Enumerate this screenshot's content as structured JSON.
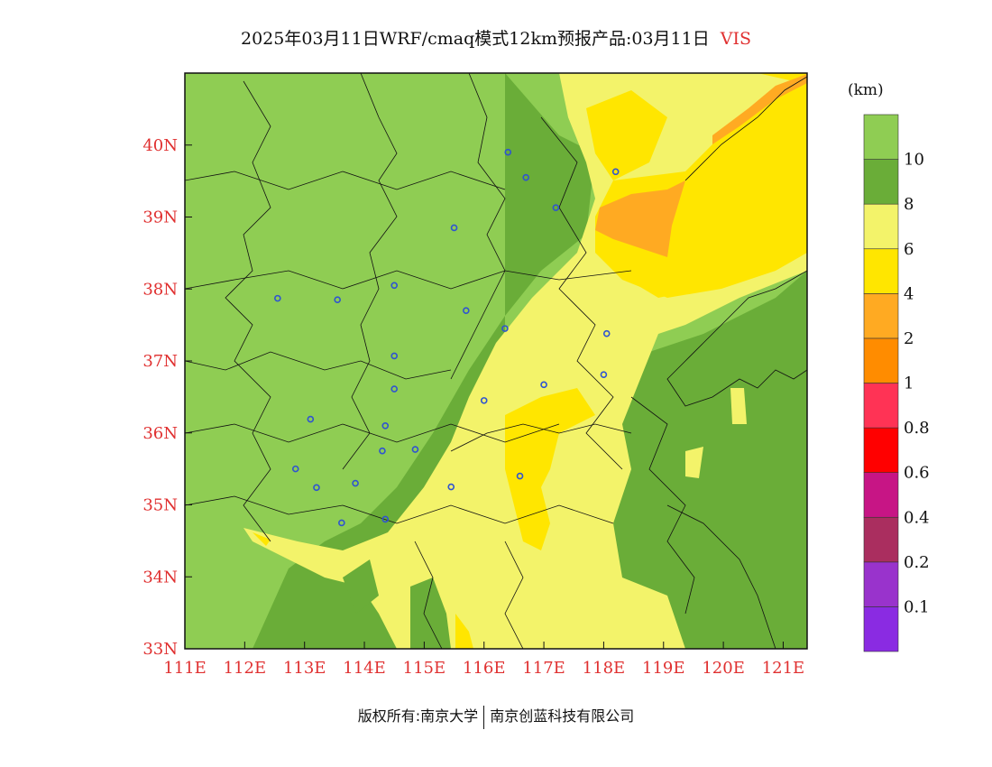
{
  "title": {
    "main": "2025年03月11日WRF/cmaq模式12km预报产品:03月11日",
    "variable": "VIS"
  },
  "unit_label": "(km)",
  "footer": {
    "left": "版权所有:南京大学",
    "right": "南京创蓝科技有限公司"
  },
  "axes": {
    "lat_labels": [
      "40N",
      "39N",
      "38N",
      "37N",
      "36N",
      "35N",
      "34N",
      "33N"
    ],
    "lon_labels": [
      "111E",
      "112E",
      "113E",
      "114E",
      "115E",
      "116E",
      "117E",
      "118E",
      "119E",
      "120E",
      "121E"
    ],
    "lat_range": [
      33,
      41
    ],
    "lon_range": [
      111,
      121.4
    ]
  },
  "colorbar": {
    "levels": [
      "0.1",
      "0.2",
      "0.4",
      "0.6",
      "0.8",
      "1",
      "2",
      "4",
      "6",
      "8",
      "10"
    ],
    "colors_bottom_to_top": [
      "#8a2be2",
      "#9933cc",
      "#aa2e5f",
      "#c71585",
      "#ff0000",
      "#ff3355",
      "#ff8c00",
      "#ffaa22",
      "#ffe600",
      "#f3f36a",
      "#6aad38",
      "#8fcd53"
    ]
  },
  "map": {
    "colors": {
      "green_light": "#8fcd53",
      "green_dark": "#6aad38",
      "yellow_pale": "#f3f36a",
      "yellow": "#ffe600",
      "orange": "#ffaa22",
      "station_marker": "#2f54d0",
      "boundary": "#111111"
    },
    "stations": [
      [
        116.4,
        39.9
      ],
      [
        116.7,
        39.55
      ],
      [
        117.2,
        39.13
      ],
      [
        115.5,
        38.85
      ],
      [
        114.5,
        38.05
      ],
      [
        112.55,
        37.87
      ],
      [
        113.55,
        37.85
      ],
      [
        115.7,
        37.7
      ],
      [
        116.35,
        37.45
      ],
      [
        114.5,
        37.07
      ],
      [
        114.5,
        36.61
      ],
      [
        118.05,
        37.38
      ],
      [
        118.0,
        36.81
      ],
      [
        117.0,
        36.67
      ],
      [
        116.0,
        36.45
      ],
      [
        113.1,
        36.19
      ],
      [
        114.35,
        36.1
      ],
      [
        114.3,
        35.75
      ],
      [
        114.85,
        35.77
      ],
      [
        112.85,
        35.5
      ],
      [
        113.2,
        35.24
      ],
      [
        113.85,
        35.3
      ],
      [
        115.45,
        35.25
      ],
      [
        116.6,
        35.4
      ],
      [
        114.35,
        34.8
      ],
      [
        113.62,
        34.75
      ],
      [
        118.2,
        39.63
      ]
    ]
  }
}
